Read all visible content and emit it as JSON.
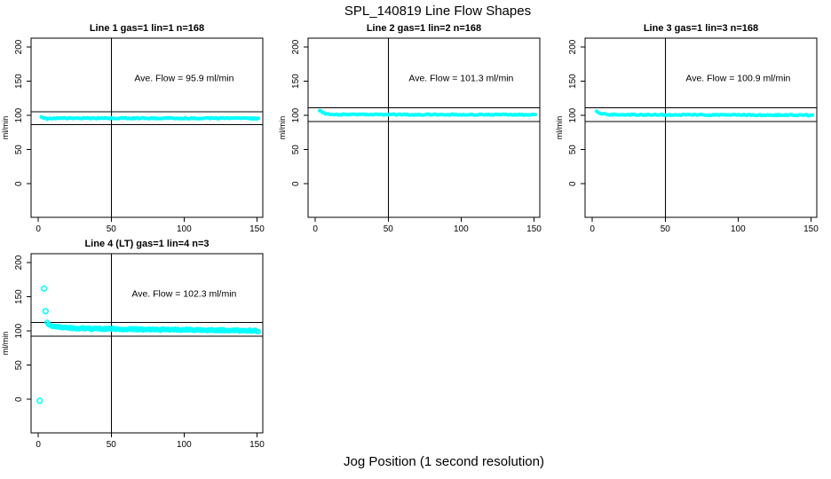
{
  "figure": {
    "title": "SPL_140819  Line Flow Shapes",
    "xlabel": "Jog Position (1 second resolution)",
    "point_color": "#00FFFF",
    "axis_color": "#000000",
    "background": "#ffffff"
  },
  "chart_data": [
    {
      "type": "scatter",
      "title": "Line 1 gas=1 lin=1 n=168",
      "ylabel": "ml/min",
      "annotation": "Ave. Flow =  95.9  ml/min",
      "ave_flow": 95.9,
      "xlim": [
        -5,
        154
      ],
      "ylim": [
        -49,
        213
      ],
      "xticks": [
        0,
        50,
        100,
        150
      ],
      "yticks": [
        0,
        50,
        100,
        150,
        200
      ],
      "vline_x": 50,
      "hlines": [
        105.5,
        86.3
      ],
      "annotation_pos": [
        100,
        150
      ],
      "point_style": "filled",
      "x_range": [
        2,
        151
      ],
      "control_points": [
        [
          2,
          97.8
        ],
        [
          3,
          97.2
        ],
        [
          4,
          96.3
        ],
        [
          6,
          94.9
        ],
        [
          9,
          95.2
        ],
        [
          13,
          95.8
        ],
        [
          25,
          95.9
        ],
        [
          60,
          95.9
        ],
        [
          100,
          95.8
        ],
        [
          151,
          95.6
        ]
      ],
      "outliers": [],
      "grid": {
        "row": 0,
        "col": 0
      }
    },
    {
      "type": "scatter",
      "title": "Line 2 gas=1 lin=2 n=168",
      "ylabel": "ml/min",
      "annotation": "Ave. Flow =  101.3  ml/min",
      "ave_flow": 101.3,
      "xlim": [
        -5,
        154
      ],
      "ylim": [
        -49,
        213
      ],
      "xticks": [
        0,
        50,
        100,
        150
      ],
      "yticks": [
        0,
        50,
        100,
        150,
        200
      ],
      "vline_x": 50,
      "hlines": [
        111.4,
        91.2
      ],
      "annotation_pos": [
        100,
        150
      ],
      "point_style": "filled",
      "x_range": [
        3,
        151
      ],
      "control_points": [
        [
          3,
          107.8
        ],
        [
          4,
          106.3
        ],
        [
          5,
          104.6
        ],
        [
          6,
          103.2
        ],
        [
          8,
          102.2
        ],
        [
          11,
          101.7
        ],
        [
          16,
          101.4
        ],
        [
          30,
          101.3
        ],
        [
          70,
          101.3
        ],
        [
          120,
          101.1
        ],
        [
          151,
          100.8
        ]
      ],
      "outliers": [],
      "grid": {
        "row": 0,
        "col": 1
      }
    },
    {
      "type": "scatter",
      "title": "Line 3 gas=1 lin=3 n=168",
      "ylabel": "ml/min",
      "annotation": "Ave. Flow =  100.9  ml/min",
      "ave_flow": 100.9,
      "xlim": [
        -5,
        154
      ],
      "ylim": [
        -49,
        213
      ],
      "xticks": [
        0,
        50,
        100,
        150
      ],
      "yticks": [
        0,
        50,
        100,
        150,
        200
      ],
      "vline_x": 50,
      "hlines": [
        111.0,
        90.8
      ],
      "annotation_pos": [
        100,
        150
      ],
      "point_style": "filled",
      "x_range": [
        3,
        151
      ],
      "control_points": [
        [
          3,
          106.6
        ],
        [
          4,
          105.2
        ],
        [
          5,
          103.8
        ],
        [
          7,
          102.3
        ],
        [
          10,
          101.4
        ],
        [
          15,
          101.1
        ],
        [
          30,
          100.9
        ],
        [
          70,
          100.9
        ],
        [
          120,
          100.6
        ],
        [
          151,
          100.3
        ]
      ],
      "outliers": [],
      "grid": {
        "row": 0,
        "col": 2
      }
    },
    {
      "type": "scatter",
      "title": "Line 4 (LT) gas=1 lin=4 n=3",
      "ylabel": "ml/min",
      "annotation": "Ave. Flow =  102.3  ml/min",
      "ave_flow": 102.3,
      "xlim": [
        -5,
        154
      ],
      "ylim": [
        -49,
        213
      ],
      "xticks": [
        0,
        50,
        100,
        150
      ],
      "yticks": [
        0,
        50,
        100,
        150,
        200
      ],
      "vline_x": 50,
      "hlines": [
        112.5,
        92.1
      ],
      "annotation_pos": [
        100,
        150
      ],
      "point_style": "ring",
      "x_range": [
        6,
        151
      ],
      "control_points": [
        [
          6,
          112.5
        ],
        [
          7,
          109.8
        ],
        [
          9,
          107.6
        ],
        [
          12,
          106.1
        ],
        [
          16,
          105.1
        ],
        [
          22,
          104.3
        ],
        [
          30,
          103.7
        ],
        [
          40,
          103.2
        ],
        [
          55,
          102.8
        ],
        [
          75,
          102.3
        ],
        [
          95,
          101.8
        ],
        [
          115,
          101.3
        ],
        [
          135,
          100.8
        ],
        [
          151,
          100.2
        ]
      ],
      "outliers": [
        [
          1,
          -2
        ],
        [
          4,
          162
        ],
        [
          5,
          129
        ]
      ],
      "grid": {
        "row": 1,
        "col": 0
      }
    }
  ]
}
